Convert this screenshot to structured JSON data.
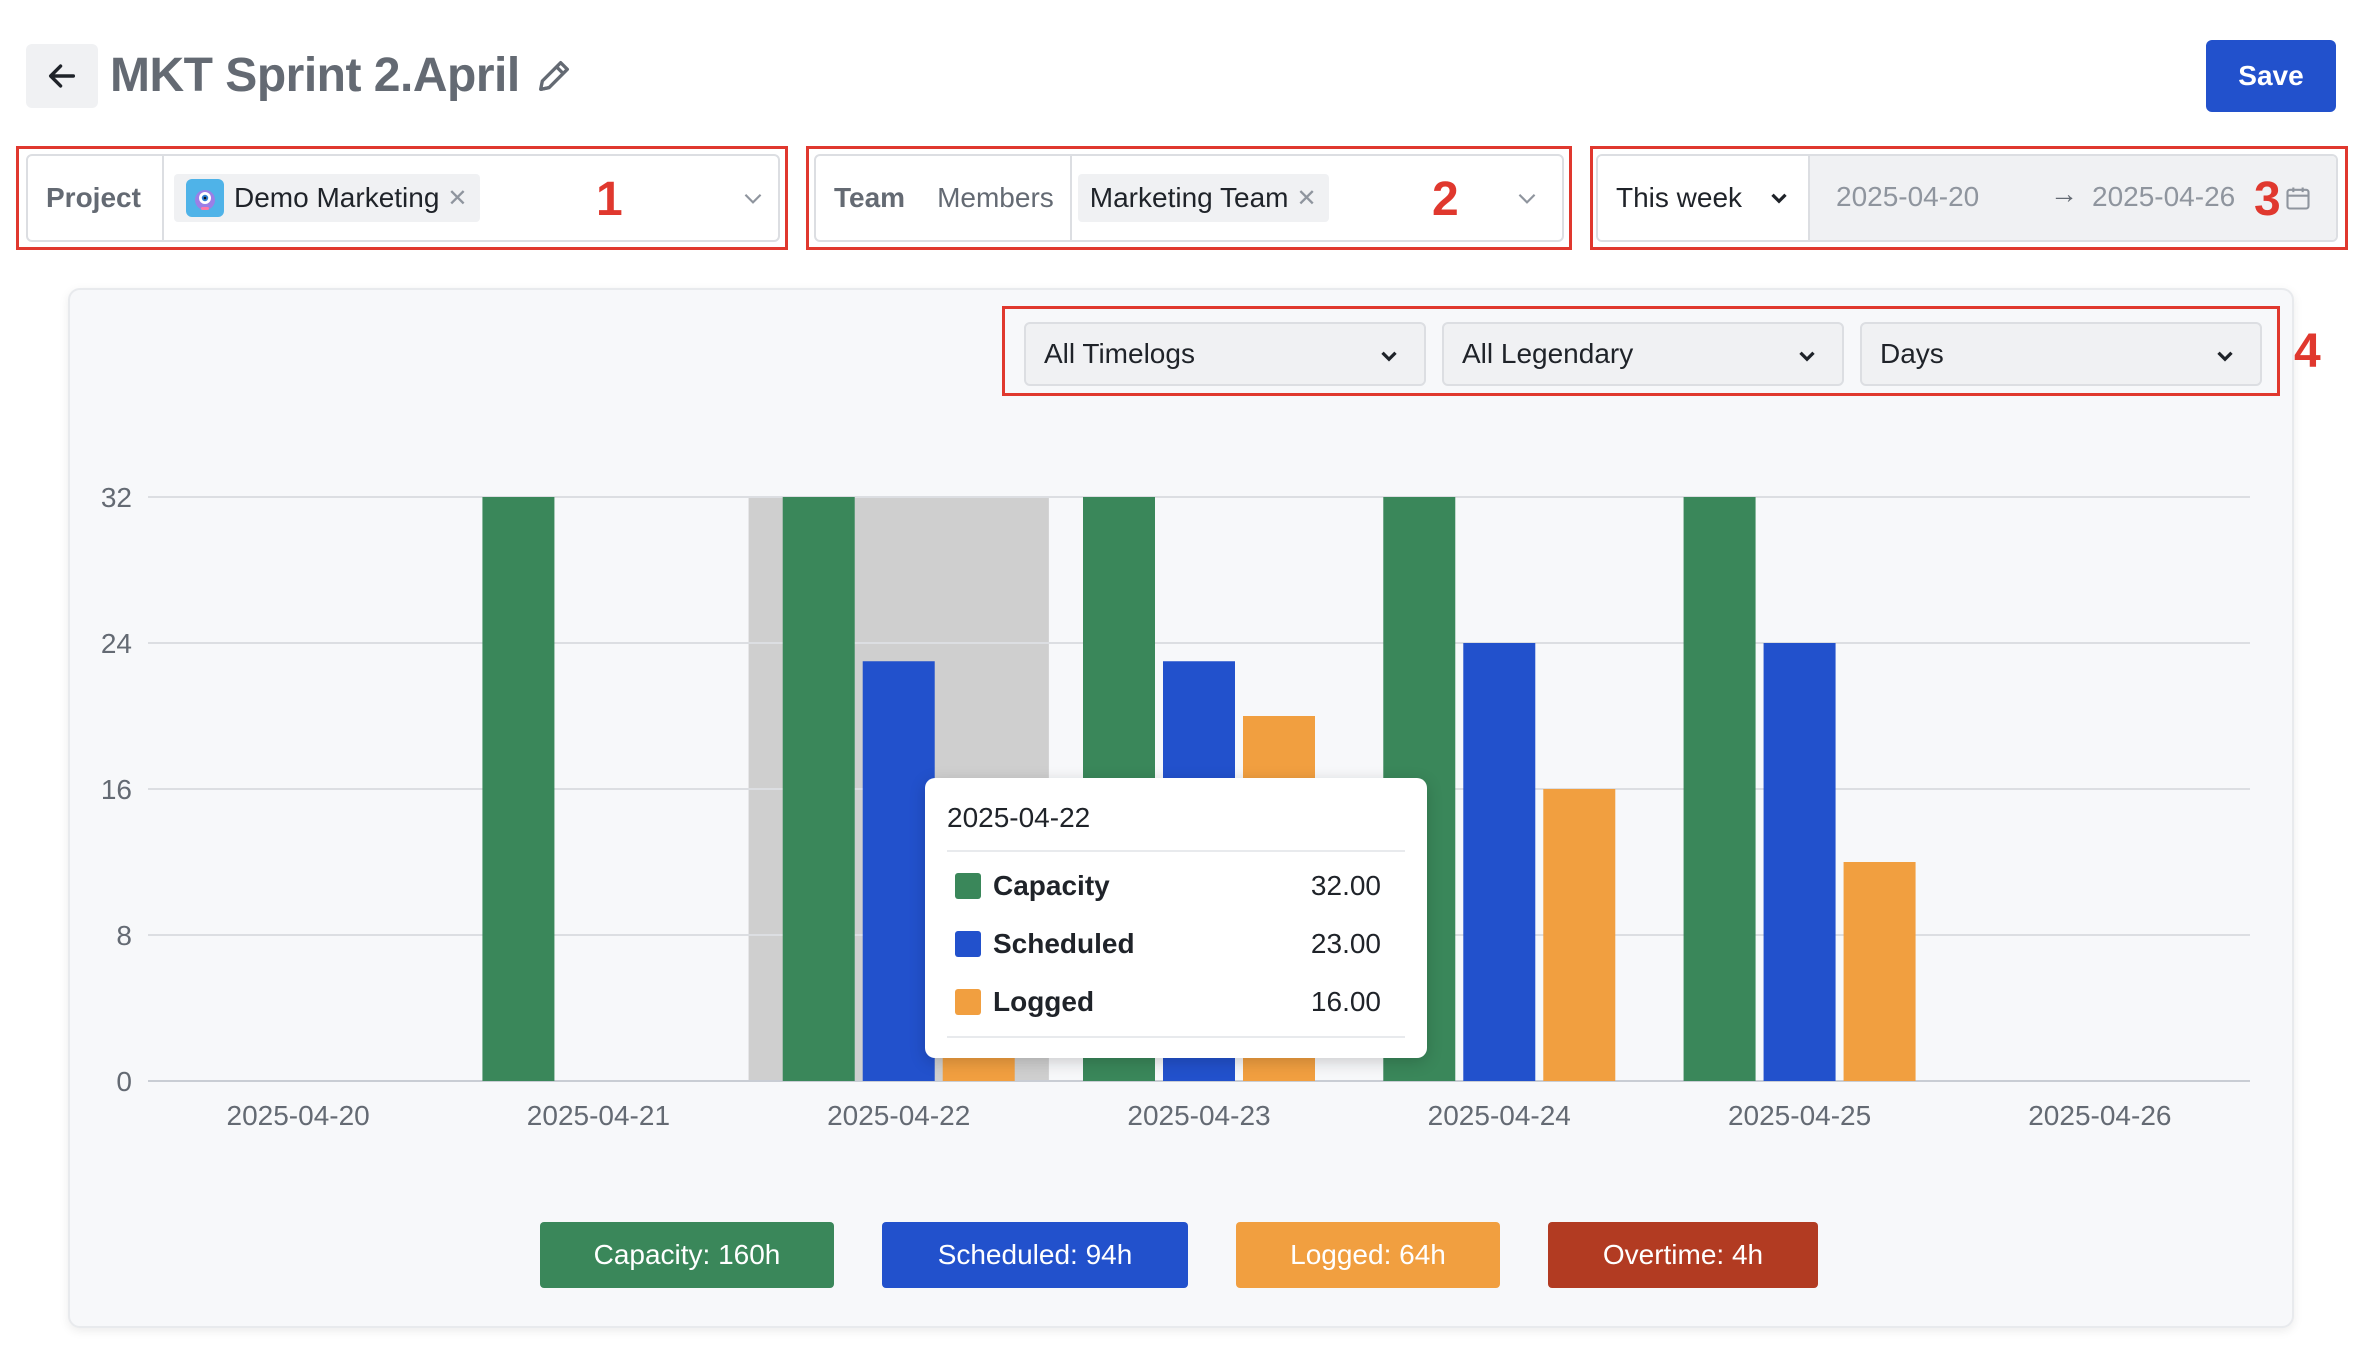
{
  "header": {
    "title": "MKT Sprint 2.April",
    "save_label": "Save"
  },
  "filters": {
    "project": {
      "label": "Project",
      "selected": "Demo Marketing",
      "annotation": "1"
    },
    "team": {
      "label": "Team",
      "members_label": "Members",
      "selected": "Marketing Team",
      "annotation": "2"
    },
    "date_range": {
      "preset": "This week",
      "start": "2025-04-20",
      "end": "2025-04-26",
      "annotation": "3"
    }
  },
  "chart_controls": {
    "timelogs": "All Timelogs",
    "legendary": "All Legendary",
    "granularity": "Days",
    "annotation": "4"
  },
  "colors": {
    "capacity": "#3a875a",
    "scheduled": "#2251cc",
    "logged": "#f19f40",
    "overtime": "#b23b22",
    "accent": "#2251cc",
    "annotation_red": "#e0382e"
  },
  "chart_data": {
    "type": "bar",
    "categories": [
      "2025-04-20",
      "2025-04-21",
      "2025-04-22",
      "2025-04-23",
      "2025-04-24",
      "2025-04-25",
      "2025-04-26"
    ],
    "series": [
      {
        "name": "Capacity",
        "values": [
          0,
          32,
          32,
          32,
          32,
          32,
          0
        ]
      },
      {
        "name": "Scheduled",
        "values": [
          0,
          0,
          23,
          23,
          24,
          24,
          0
        ]
      },
      {
        "name": "Logged",
        "values": [
          0,
          0,
          16,
          20,
          16,
          12,
          0
        ]
      }
    ],
    "ylim": [
      0,
      32
    ],
    "yticks": [
      0,
      8,
      16,
      24,
      32
    ],
    "grid": true,
    "highlighted_category": "2025-04-22"
  },
  "tooltip": {
    "title": "2025-04-22",
    "rows": [
      {
        "name": "Capacity",
        "value": "32.00"
      },
      {
        "name": "Scheduled",
        "value": "23.00"
      },
      {
        "name": "Logged",
        "value": "16.00"
      }
    ]
  },
  "legend": {
    "items": [
      {
        "label": "Capacity:",
        "value": "160h"
      },
      {
        "label": "Scheduled:",
        "value": "94h"
      },
      {
        "label": "Logged:",
        "value": "64h"
      },
      {
        "label": "Overtime:",
        "value": "4h"
      }
    ]
  }
}
